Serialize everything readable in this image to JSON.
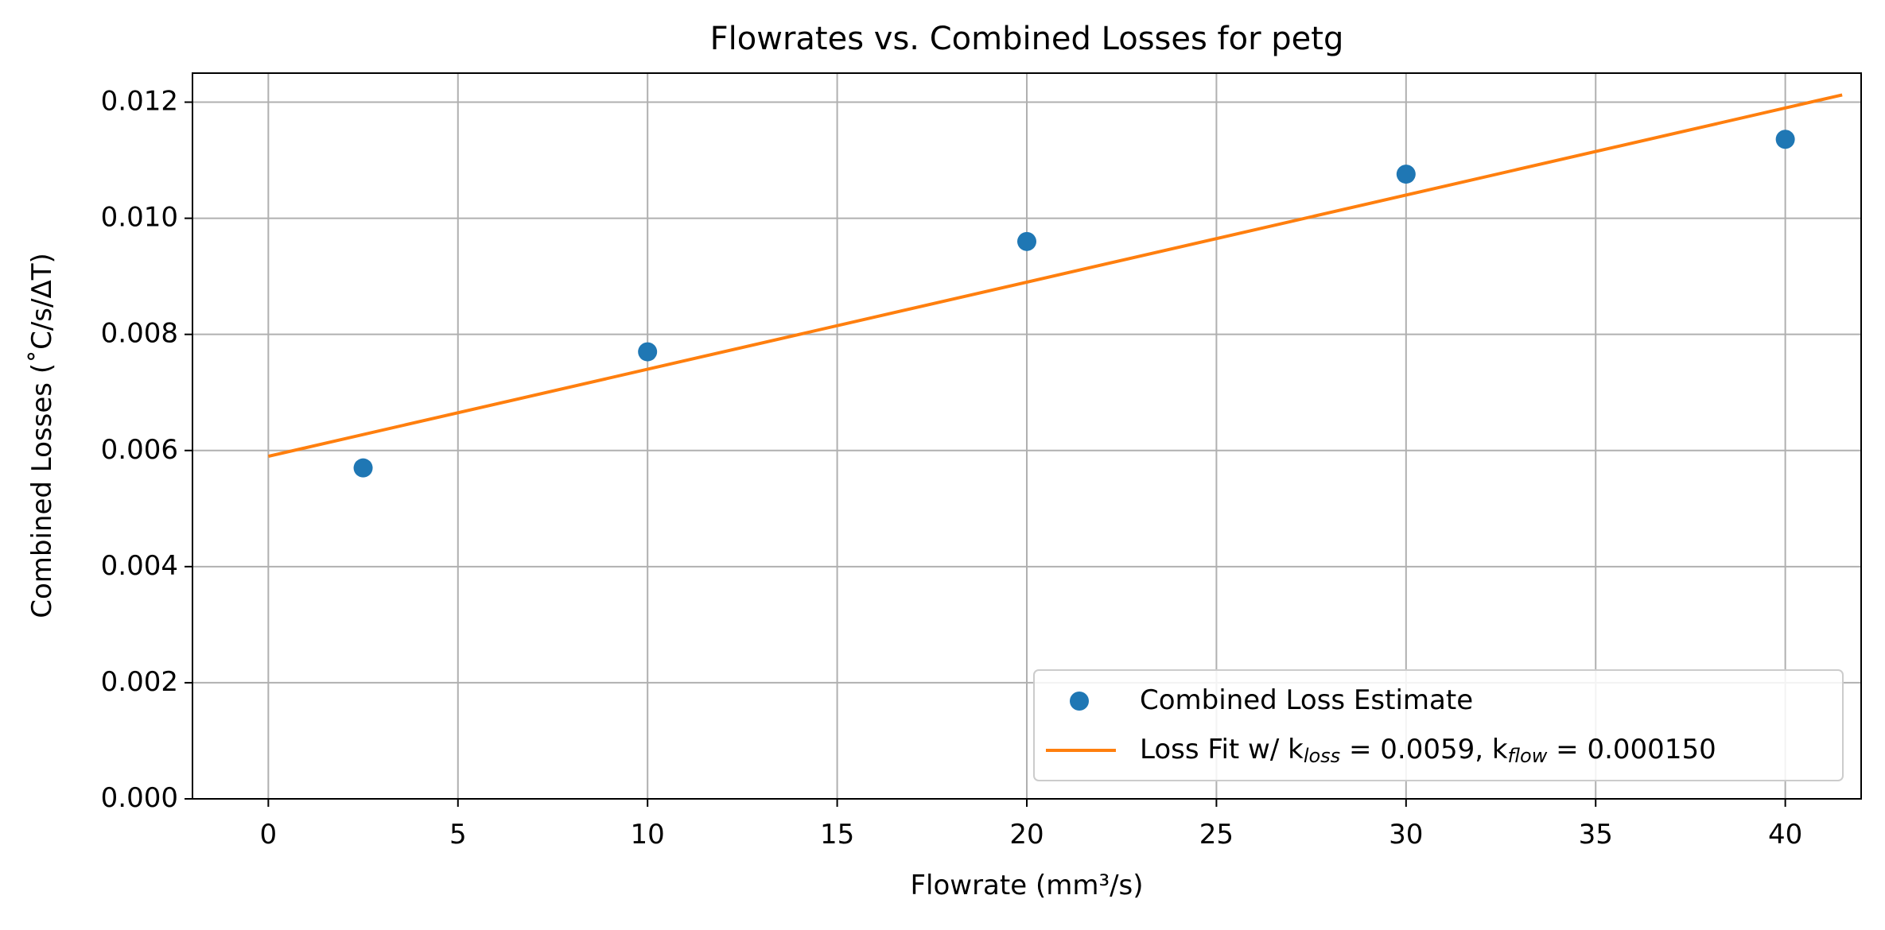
{
  "chart_data": {
    "type": "scatter",
    "title": "Flowrates vs. Combined Losses for petg",
    "x_label": "Flowrate  (mm³/s)",
    "y_label": "Combined Losses (˚C/s/ΔT)",
    "xlim": [
      -2,
      42
    ],
    "xticks": [
      0,
      5,
      10,
      15,
      20,
      25,
      30,
      35,
      40
    ],
    "ylim": [
      0,
      0.0125
    ],
    "yticks": [
      {
        "value": 0,
        "label": "0.000"
      },
      {
        "value": 0.002,
        "label": "0.002"
      },
      {
        "value": 0.004,
        "label": "0.004"
      },
      {
        "value": 0.006,
        "label": "0.006"
      },
      {
        "value": 0.008,
        "label": "0.008"
      },
      {
        "value": 0.01,
        "label": "0.010"
      },
      {
        "value": 0.012,
        "label": "0.012"
      }
    ],
    "grid": true,
    "legend": "lower right",
    "series": [
      {
        "name": "Combined Loss Estimate",
        "type": "scatter",
        "color": "#1f77b4",
        "x": [
          2.5,
          10,
          20,
          30,
          40
        ],
        "values": [
          0.0057,
          0.0077,
          0.0096,
          0.01076,
          0.01136
        ]
      },
      {
        "name": "Loss Fit w/ k_loss = 0.0059, k_flow = 0.000150",
        "type": "line",
        "color": "#ff7f0e",
        "x": [
          0,
          41.5
        ],
        "values": [
          0.0059,
          0.012125
        ]
      }
    ]
  }
}
